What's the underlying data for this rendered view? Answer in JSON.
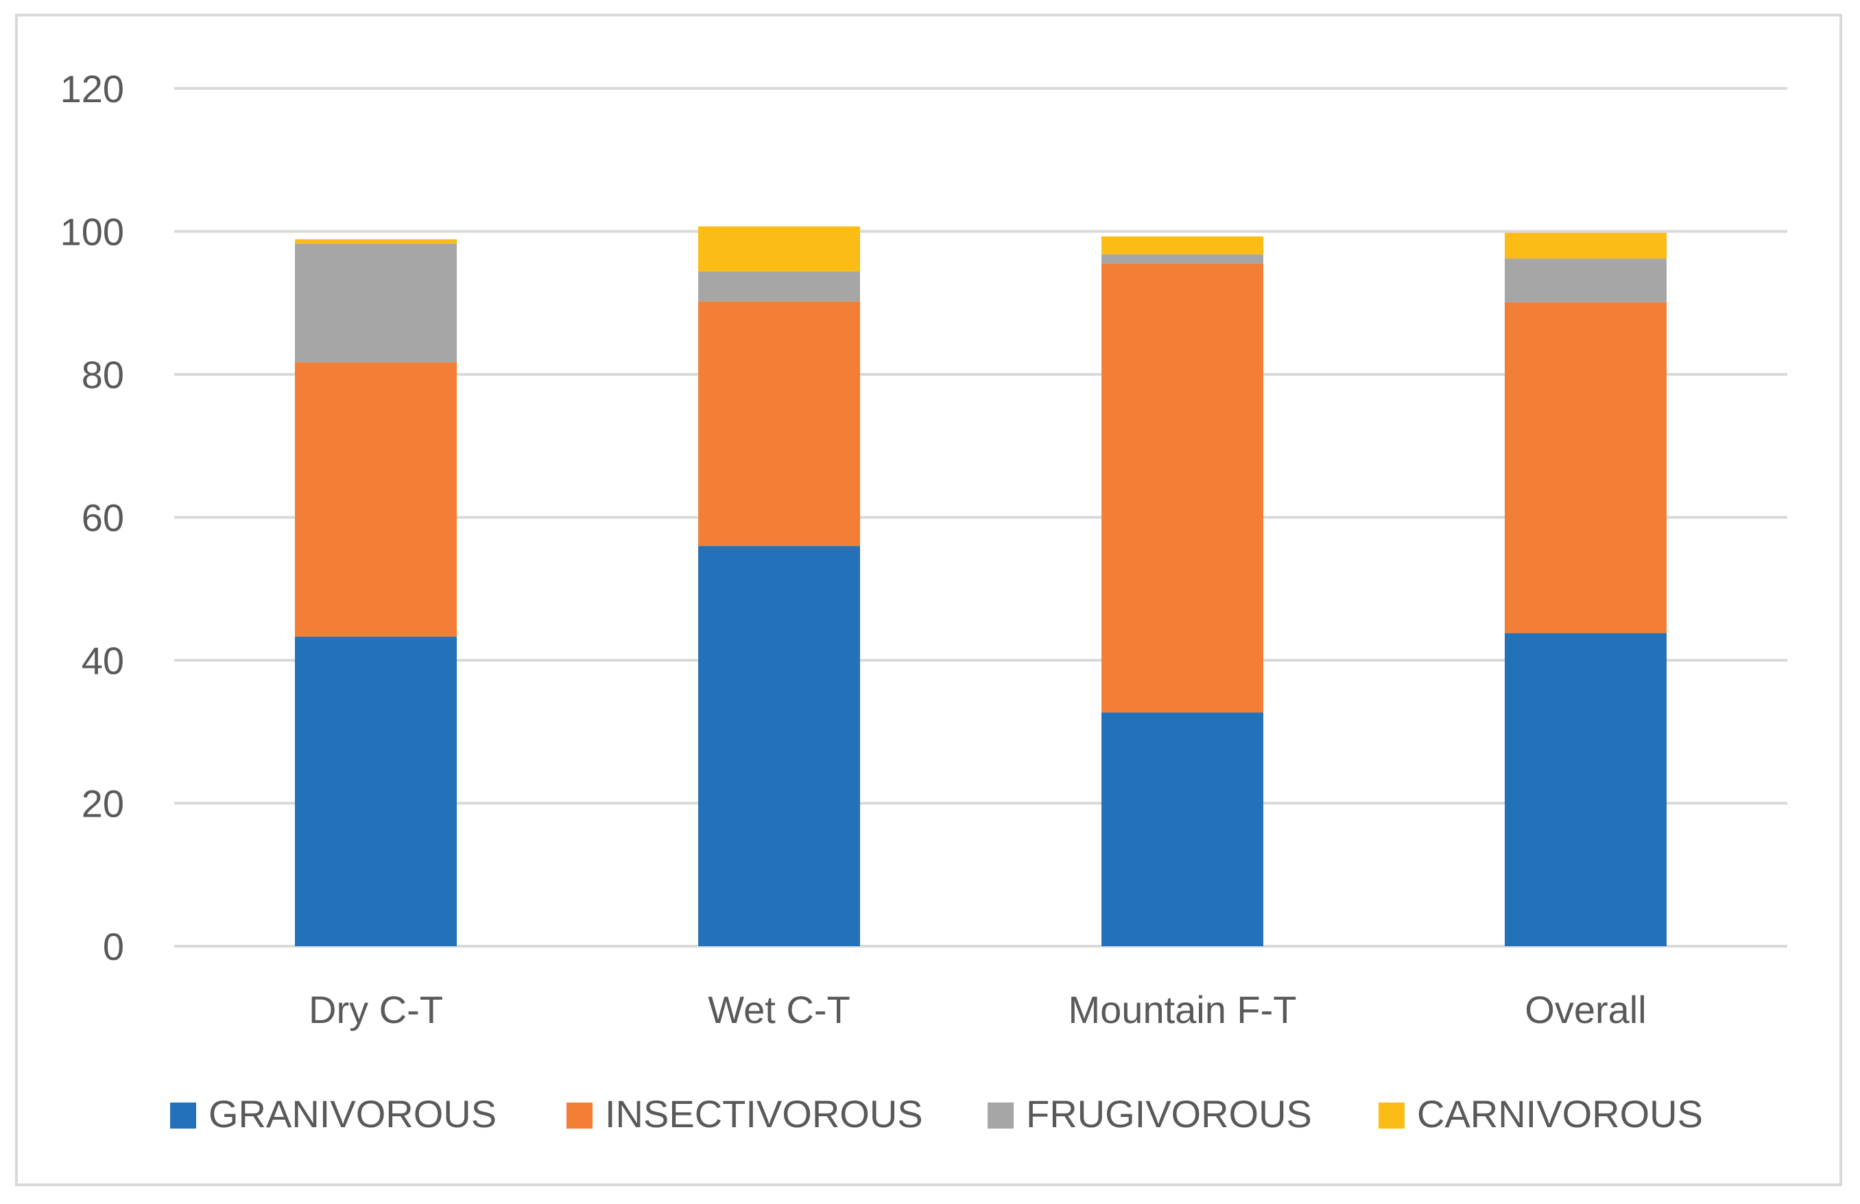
{
  "chart_data": {
    "type": "bar",
    "stacked": true,
    "title": "",
    "xlabel": "",
    "ylabel": "",
    "ylim": [
      0,
      120
    ],
    "yticks": [
      0,
      20,
      40,
      60,
      80,
      100,
      120
    ],
    "grid": true,
    "legend_position": "bottom",
    "categories": [
      "Dry C-T",
      "Wet C-T",
      "Mountain F-T",
      "Overall"
    ],
    "series": [
      {
        "name": "GRANIVOROUS",
        "color": "#2371b9",
        "values": [
          43.3,
          56.0,
          32.7,
          43.8
        ]
      },
      {
        "name": "INSECTIVOROUS",
        "color": "#f27f35",
        "values": [
          38.4,
          34.2,
          62.8,
          46.3
        ]
      },
      {
        "name": "FRUGIVOROUS",
        "color": "#a6a6a6",
        "values": [
          16.6,
          4.2,
          1.3,
          6.1
        ]
      },
      {
        "name": "CARNIVOROUS",
        "color": "#fbbc15",
        "values": [
          0.6,
          6.3,
          2.5,
          3.6
        ]
      }
    ]
  }
}
